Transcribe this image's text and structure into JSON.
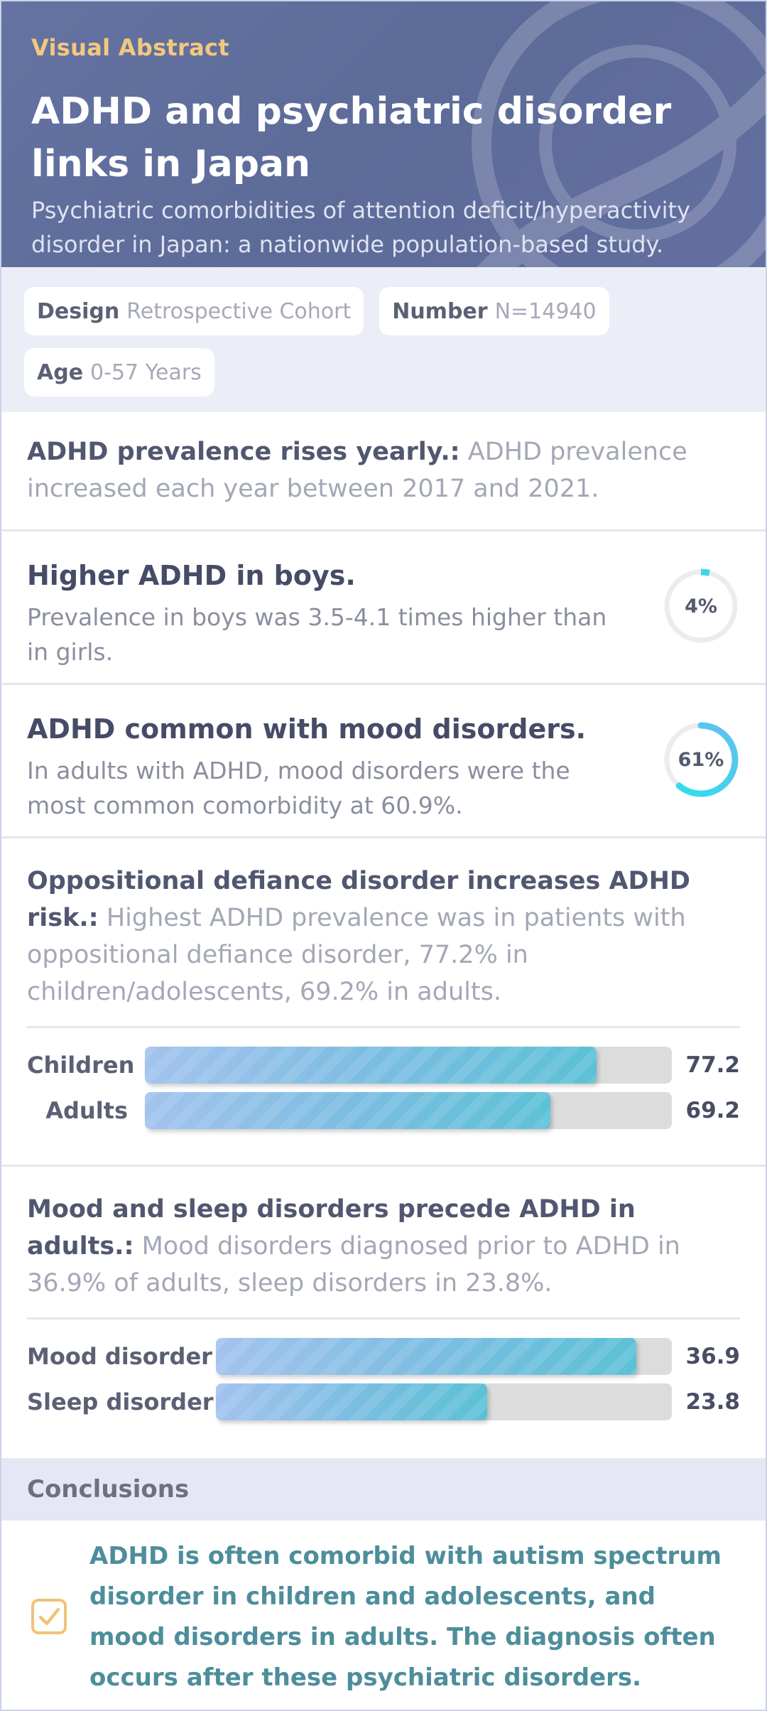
{
  "header": {
    "label": "Visual Abstract",
    "title": "ADHD and psychiatric disorder links in Japan",
    "subtitle": "Psychiatric comorbidities of attention deficit/hyperactivity disorder in Japan: a nationwide population-based study."
  },
  "tags": [
    {
      "key": "Design",
      "value": "Retrospective Cohort"
    },
    {
      "key": "Number",
      "value": "N=14940"
    },
    {
      "key": "Age",
      "value": "0-57 Years"
    }
  ],
  "findings": {
    "prevalence": {
      "lead": "ADHD prevalence rises yearly.:",
      "text": "ADHD prevalence increased each year between 2017 and 2021."
    },
    "boys": {
      "title": "Higher ADHD in boys.",
      "text": "Prevalence in boys was 3.5-4.1 times higher than in girls.",
      "ring_label": "4%",
      "ring_percent": 4
    },
    "mood": {
      "title": "ADHD common with mood disorders.",
      "text": "In adults with ADHD, mood disorders were the most common comorbidity at 60.9%.",
      "ring_label": "61%",
      "ring_percent": 61
    },
    "odd": {
      "lead": "Oppositional defiance disorder increases ADHD risk.:",
      "text": "Highest ADHD prevalence was in patients with oppositional defiance disorder, 77.2% in children/adolescents, 69.2% in adults."
    },
    "precede": {
      "lead": "Mood and sleep disorders precede ADHD in adults.:",
      "text": "Mood disorders diagnosed prior to ADHD in 36.9% of adults, sleep disorders in 23.8%."
    }
  },
  "chart_data": [
    {
      "type": "bar",
      "categories": [
        "Children",
        "Adults"
      ],
      "values": [
        77.2,
        69.2
      ],
      "value_labels": [
        "77.2",
        "69.2"
      ],
      "xlim": [
        0,
        90
      ]
    },
    {
      "type": "bar",
      "categories": [
        "Mood disorder",
        "Sleep disorder"
      ],
      "values": [
        36.9,
        23.8
      ],
      "value_labels": [
        "36.9",
        "23.8"
      ],
      "xlim": [
        0,
        40
      ]
    }
  ],
  "conclusions": {
    "heading": "Conclusions",
    "text": "ADHD is often comorbid with autism spectrum disorder in children and adolescents, and mood disorders in adults. The diagnosis often occurs after these psychiatric disorders."
  },
  "colors": {
    "header_bg": "#5f6c9b",
    "accent_gold": "#f3c87e",
    "ring_cyan": "#3fd5e6",
    "conclusion_text": "#4d8e9b"
  },
  "icons": {
    "conclusion": "checkbox-checked-icon"
  }
}
